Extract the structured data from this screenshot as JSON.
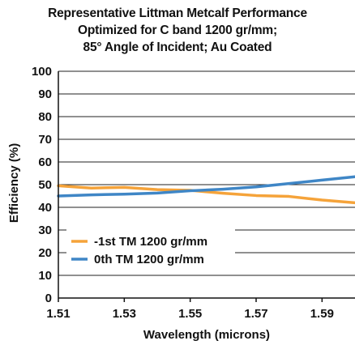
{
  "chart_data": {
    "type": "line",
    "title_lines": [
      "Representative Littman Metcalf Performance",
      "Optimized for C band 1200 gr/mm;",
      "85° Angle of Incident; Au Coated"
    ],
    "xlabel": "Wavelength (microns)",
    "ylabel": "Efficiency (%)",
    "xlim": [
      1.51,
      1.6
    ],
    "ylim": [
      0,
      100
    ],
    "x_ticks": [
      "1.51",
      "1.53",
      "1.55",
      "1.57",
      "1.59"
    ],
    "y_ticks": [
      "0",
      "10",
      "20",
      "30",
      "40",
      "50",
      "60",
      "70",
      "80",
      "90",
      "100"
    ],
    "grid": "horizontal",
    "legend_position": "lower-left",
    "x": [
      1.51,
      1.52,
      1.53,
      1.54,
      1.55,
      1.56,
      1.57,
      1.58,
      1.59,
      1.6
    ],
    "series": [
      {
        "name": "-1st TM 1200 gr/mm",
        "color": "#f5a33a",
        "values": [
          49.5,
          48.5,
          48.8,
          47.8,
          47.5,
          46.2,
          45.2,
          44.8,
          43.2,
          42.0
        ]
      },
      {
        "name": "0th TM 1200 gr/mm",
        "color": "#3f86c6",
        "values": [
          45.0,
          45.5,
          45.8,
          46.3,
          47.3,
          48.0,
          49.0,
          50.5,
          52.0,
          53.5
        ]
      }
    ]
  }
}
